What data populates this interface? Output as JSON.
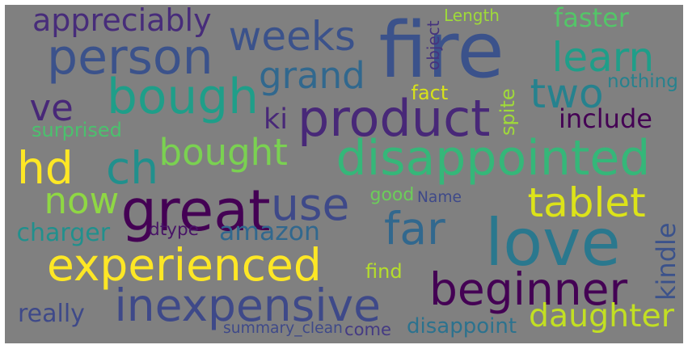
{
  "words": [
    {
      "key": "fire",
      "text": "fire",
      "color": "#3b528b"
    },
    {
      "key": "love",
      "text": "love",
      "color": "#2a788e"
    },
    {
      "key": "great",
      "text": "great",
      "color": "#440154"
    },
    {
      "key": "product",
      "text": "product",
      "color": "#482878"
    },
    {
      "key": "disappointed",
      "text": "disappointed",
      "color": "#35b779"
    },
    {
      "key": "experienced",
      "text": "experienced",
      "color": "#fde725"
    },
    {
      "key": "inexpensive",
      "text": "inexpensive",
      "color": "#3e4989"
    },
    {
      "key": "beginner",
      "text": "beginner",
      "color": "#440154"
    },
    {
      "key": "tablet",
      "text": "tablet",
      "color": "#dce319"
    },
    {
      "key": "person",
      "text": "person",
      "color": "#3b528b"
    },
    {
      "key": "learn",
      "text": "learn",
      "color": "#1f9e89"
    },
    {
      "key": "bough",
      "text": "bough",
      "color": "#1f9e89"
    },
    {
      "key": "use",
      "text": "use",
      "color": "#3e4989"
    },
    {
      "key": "far",
      "text": "far",
      "color": "#31688e"
    },
    {
      "key": "ch",
      "text": "ch",
      "color": "#21908d"
    },
    {
      "key": "now",
      "text": "now",
      "color": "#8fd744"
    },
    {
      "key": "hd",
      "text": "hd",
      "color": "#fde725"
    },
    {
      "key": "ve",
      "text": "ve",
      "color": "#482878"
    },
    {
      "key": "two",
      "text": "two",
      "color": "#26828e"
    },
    {
      "key": "weeks",
      "text": "weeks",
      "color": "#3b528b"
    },
    {
      "key": "grand",
      "text": "grand",
      "color": "#31688e"
    },
    {
      "key": "bought",
      "text": "bought",
      "color": "#7ad151"
    },
    {
      "key": "daughter",
      "text": "daughter",
      "color": "#c2df23"
    },
    {
      "key": "amazon",
      "text": "amazon",
      "color": "#31688e"
    },
    {
      "key": "appreciably",
      "text": "appreciably",
      "color": "#472c7a"
    },
    {
      "key": "faster",
      "text": "faster",
      "color": "#54c568"
    },
    {
      "key": "include",
      "text": "include",
      "color": "#440154"
    },
    {
      "key": "really",
      "text": "really",
      "color": "#3e4989"
    },
    {
      "key": "charger",
      "text": "charger",
      "color": "#21908d"
    },
    {
      "key": "kindle",
      "text": "kindle",
      "color": "#3b528b"
    },
    {
      "key": "disappoint",
      "text": "disappoint",
      "color": "#2c728e"
    },
    {
      "key": "ki",
      "text": "ki",
      "color": "#482878"
    },
    {
      "key": "nothing",
      "text": "nothing",
      "color": "#26828e"
    },
    {
      "key": "surprised",
      "text": "surprised",
      "color": "#4ac16d"
    },
    {
      "key": "find",
      "text": "find",
      "color": "#b5de2b"
    },
    {
      "key": "fact",
      "text": "fact",
      "color": "#d8e219"
    },
    {
      "key": "spite",
      "text": "spite",
      "color": "#a0da39"
    },
    {
      "key": "summary_clean",
      "text": "summary_clean",
      "color": "#3e4989"
    },
    {
      "key": "come",
      "text": "come",
      "color": "#443a83"
    },
    {
      "key": "dtype",
      "text": "dtype",
      "color": "#481467"
    },
    {
      "key": "Name",
      "text": "Name",
      "color": "#3e4989"
    },
    {
      "key": "good",
      "text": "good",
      "color": "#6ccd5a"
    },
    {
      "key": "Length",
      "text": "Length",
      "color": "#9fda3a"
    },
    {
      "key": "object",
      "text": "object",
      "color": "#46337e"
    }
  ]
}
